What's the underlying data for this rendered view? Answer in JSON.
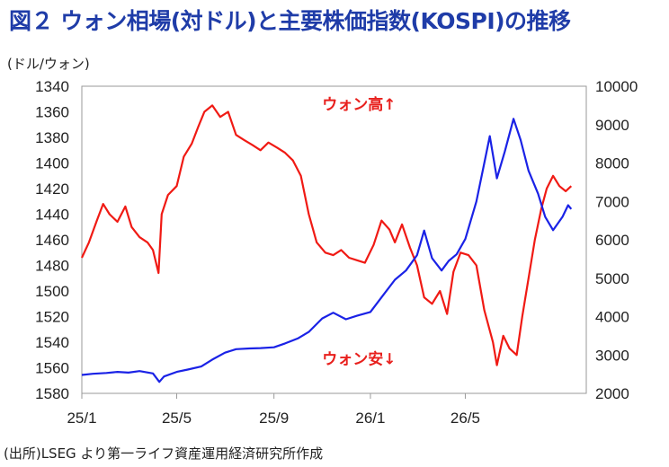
{
  "title": "図２ ウォン相場(対ドル)と主要株価指数(KOSPI)の推移",
  "unit_label": "(ドル/ウォン)",
  "source": "(出所)LSEG より第一ライフ資産運用経済研究所作成",
  "colors": {
    "won": "#f01a14",
    "kospi": "#1a22e6",
    "title": "#1f3ca8",
    "annotation": "#e8201d"
  },
  "chart_data": {
    "type": "line",
    "title": "図２ ウォン相場(対ドル)と主要株価指数(KOSPI)の推移",
    "xlabel": "",
    "x_ticks": [
      "25/1",
      "25/5",
      "25/9",
      "26/1",
      "26/5"
    ],
    "x_range": [
      "2025-01",
      "2026-10"
    ],
    "left_axis": {
      "label": "(ドル/ウォン)",
      "min": 1340,
      "max": 1580,
      "inverted": true,
      "ticks": [
        1340,
        1360,
        1380,
        1400,
        1420,
        1440,
        1460,
        1480,
        1500,
        1520,
        1540,
        1560,
        1580
      ]
    },
    "right_axis": {
      "label": "",
      "min": 2000,
      "max": 10000,
      "ticks": [
        2000,
        3000,
        4000,
        5000,
        6000,
        7000,
        8000,
        9000,
        10000
      ]
    },
    "grid": false,
    "annotations": [
      {
        "text": "ウォン高↑",
        "x": "2025-11",
        "y": 1354
      },
      {
        "text": "ウォン安↓",
        "x": "2025-11",
        "y": 1553
      }
    ],
    "series": [
      {
        "axis": "left",
        "color": "#f01a14",
        "points": [
          [
            "2025-01-01",
            1474
          ],
          [
            "2025-01-10",
            1462
          ],
          [
            "2025-01-20",
            1445
          ],
          [
            "2025-01-28",
            1432
          ],
          [
            "2025-02-05",
            1440
          ],
          [
            "2025-02-15",
            1446
          ],
          [
            "2025-02-25",
            1434
          ],
          [
            "2025-03-05",
            1450
          ],
          [
            "2025-03-15",
            1458
          ],
          [
            "2025-03-25",
            1462
          ],
          [
            "2025-04-01",
            1468
          ],
          [
            "2025-04-08",
            1486
          ],
          [
            "2025-04-12",
            1440
          ],
          [
            "2025-04-20",
            1425
          ],
          [
            "2025-05-01",
            1418
          ],
          [
            "2025-05-10",
            1395
          ],
          [
            "2025-05-20",
            1385
          ],
          [
            "2025-05-28",
            1372
          ],
          [
            "2025-06-05",
            1360
          ],
          [
            "2025-06-15",
            1355
          ],
          [
            "2025-06-25",
            1364
          ],
          [
            "2025-07-05",
            1360
          ],
          [
            "2025-07-15",
            1378
          ],
          [
            "2025-07-25",
            1382
          ],
          [
            "2025-08-05",
            1386
          ],
          [
            "2025-08-15",
            1390
          ],
          [
            "2025-08-25",
            1384
          ],
          [
            "2025-09-05",
            1388
          ],
          [
            "2025-09-15",
            1392
          ],
          [
            "2025-09-25",
            1398
          ],
          [
            "2025-10-05",
            1410
          ],
          [
            "2025-10-15",
            1440
          ],
          [
            "2025-10-25",
            1462
          ],
          [
            "2025-11-05",
            1470
          ],
          [
            "2025-11-15",
            1472
          ],
          [
            "2025-11-25",
            1468
          ],
          [
            "2025-12-05",
            1474
          ],
          [
            "2025-12-15",
            1476
          ],
          [
            "2025-12-25",
            1478
          ],
          [
            "2026-01-05",
            1464
          ],
          [
            "2026-01-15",
            1445
          ],
          [
            "2026-01-25",
            1452
          ],
          [
            "2026-02-01",
            1462
          ],
          [
            "2026-02-10",
            1448
          ],
          [
            "2026-02-20",
            1466
          ],
          [
            "2026-03-01",
            1480
          ],
          [
            "2026-03-10",
            1505
          ],
          [
            "2026-03-20",
            1510
          ],
          [
            "2026-03-30",
            1500
          ],
          [
            "2026-04-08",
            1518
          ],
          [
            "2026-04-16",
            1485
          ],
          [
            "2026-04-25",
            1470
          ],
          [
            "2026-05-05",
            1472
          ],
          [
            "2026-05-15",
            1480
          ],
          [
            "2026-05-25",
            1515
          ],
          [
            "2026-06-05",
            1540
          ],
          [
            "2026-06-10",
            1558
          ],
          [
            "2026-06-18",
            1535
          ],
          [
            "2026-06-26",
            1545
          ],
          [
            "2026-07-05",
            1550
          ],
          [
            "2026-07-12",
            1520
          ],
          [
            "2026-07-20",
            1490
          ],
          [
            "2026-07-28",
            1460
          ],
          [
            "2026-08-05",
            1436
          ],
          [
            "2026-08-12",
            1420
          ],
          [
            "2026-08-20",
            1410
          ],
          [
            "2026-08-28",
            1418
          ],
          [
            "2026-09-05",
            1422
          ],
          [
            "2026-09-12",
            1418
          ]
        ]
      },
      {
        "axis": "right",
        "color": "#1a22e6",
        "points": [
          [
            "2025-01-01",
            2480
          ],
          [
            "2025-01-15",
            2510
          ],
          [
            "2025-02-01",
            2530
          ],
          [
            "2025-02-15",
            2560
          ],
          [
            "2025-03-01",
            2540
          ],
          [
            "2025-03-15",
            2580
          ],
          [
            "2025-04-01",
            2520
          ],
          [
            "2025-04-09",
            2300
          ],
          [
            "2025-04-15",
            2440
          ],
          [
            "2025-05-01",
            2560
          ],
          [
            "2025-05-15",
            2620
          ],
          [
            "2025-06-01",
            2700
          ],
          [
            "2025-06-15",
            2880
          ],
          [
            "2025-07-01",
            3060
          ],
          [
            "2025-07-15",
            3150
          ],
          [
            "2025-08-01",
            3170
          ],
          [
            "2025-08-15",
            3180
          ],
          [
            "2025-09-01",
            3200
          ],
          [
            "2025-09-15",
            3300
          ],
          [
            "2025-10-01",
            3430
          ],
          [
            "2025-10-15",
            3600
          ],
          [
            "2025-11-01",
            3950
          ],
          [
            "2025-11-15",
            4100
          ],
          [
            "2025-12-01",
            3930
          ],
          [
            "2025-12-15",
            4020
          ],
          [
            "2026-01-01",
            4120
          ],
          [
            "2026-01-15",
            4500
          ],
          [
            "2026-02-01",
            4960
          ],
          [
            "2026-02-15",
            5200
          ],
          [
            "2026-03-01",
            5600
          ],
          [
            "2026-03-10",
            6240
          ],
          [
            "2026-03-20",
            5520
          ],
          [
            "2026-04-01",
            5200
          ],
          [
            "2026-04-10",
            5450
          ],
          [
            "2026-04-20",
            5620
          ],
          [
            "2026-05-01",
            6020
          ],
          [
            "2026-05-15",
            7000
          ],
          [
            "2026-05-25",
            8000
          ],
          [
            "2026-06-01",
            8700
          ],
          [
            "2026-06-10",
            7600
          ],
          [
            "2026-06-20",
            8300
          ],
          [
            "2026-07-01",
            9150
          ],
          [
            "2026-07-10",
            8600
          ],
          [
            "2026-07-20",
            7800
          ],
          [
            "2026-08-01",
            7200
          ],
          [
            "2026-08-10",
            6600
          ],
          [
            "2026-08-20",
            6250
          ],
          [
            "2026-09-01",
            6600
          ],
          [
            "2026-09-08",
            6900
          ],
          [
            "2026-09-12",
            6800
          ]
        ]
      }
    ]
  }
}
